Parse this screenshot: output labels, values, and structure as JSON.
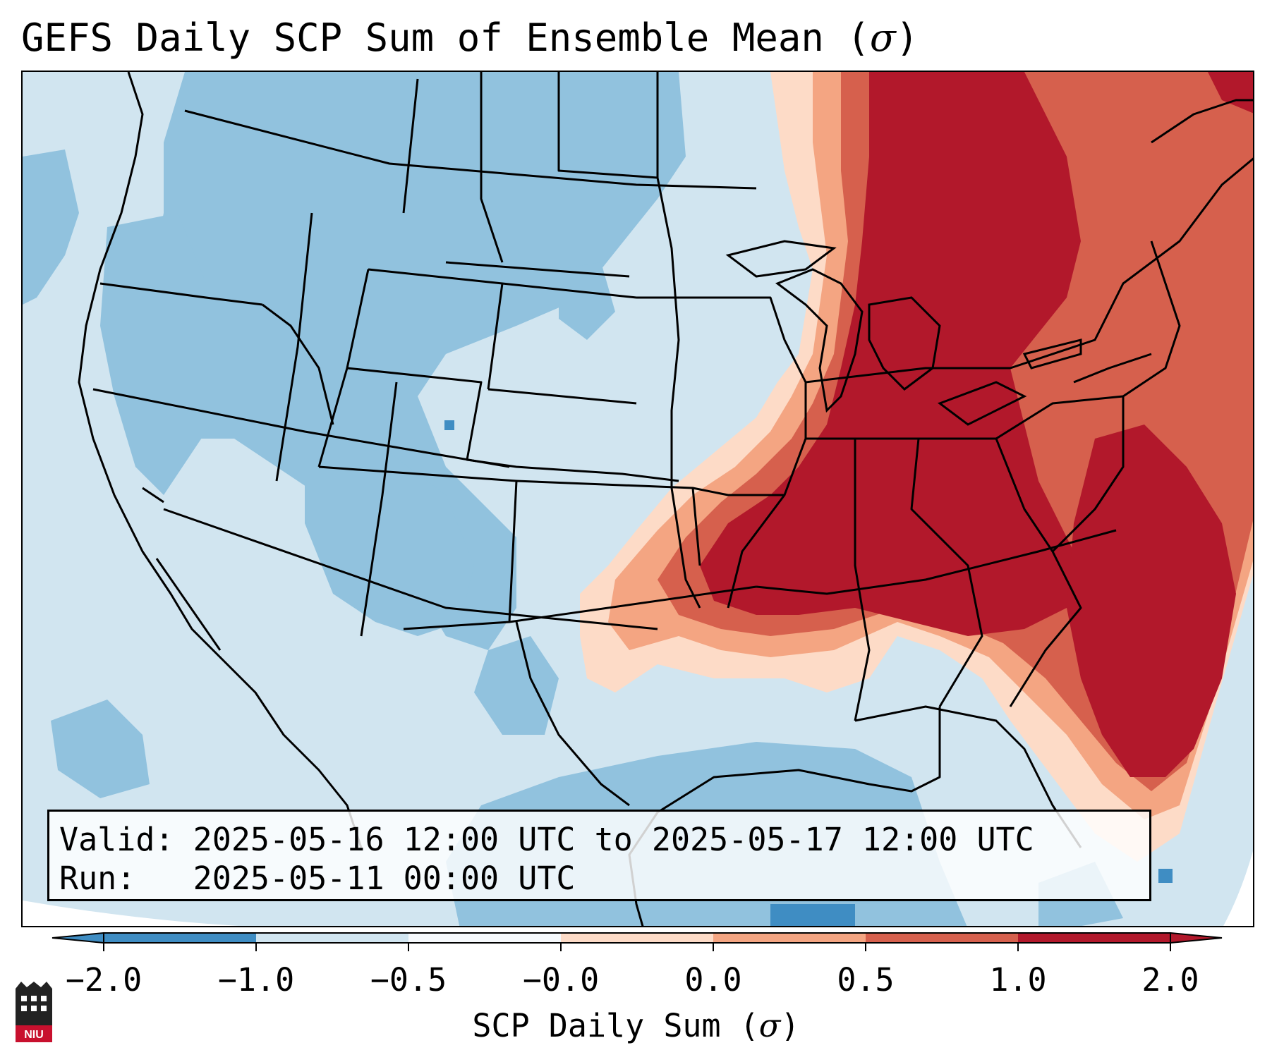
{
  "title": {
    "text": "GEFS Daily SCP Sum of Ensemble Mean (",
    "symbol": "σ",
    "close": ")"
  },
  "info": {
    "valid_label": "Valid:",
    "valid_value": "2025-05-16 12:00 UTC to 2025-05-17 12:00 UTC",
    "run_label": "Run:",
    "run_value": "2025-05-11 00:00 UTC"
  },
  "colorbar": {
    "label": {
      "text": "SCP Daily Sum (",
      "symbol": "σ",
      "close": ")"
    },
    "ticks": [
      "−2.0",
      "−1.0",
      "−0.5",
      "−0.0",
      "0.0",
      "0.5",
      "1.0",
      "2.0"
    ],
    "colors": [
      "#3f8dc3",
      "#91c2de",
      "#d1e5f0",
      "#f6f9fc",
      "#fddbc7",
      "#f4a582",
      "#d6604d",
      "#b2182b"
    ],
    "extend": "both"
  },
  "legend_colors": {
    "strong_negative": "#3f8dc3",
    "negative": "#91c2de",
    "weak_negative": "#d1e5f0",
    "weak_positive": "#fddbc7",
    "positive": "#f4a582",
    "strong_positive": "#d6604d",
    "very_strong_positive": "#b2182b"
  },
  "logo": {
    "text": "NIU",
    "icon": "university-seal-icon"
  }
}
